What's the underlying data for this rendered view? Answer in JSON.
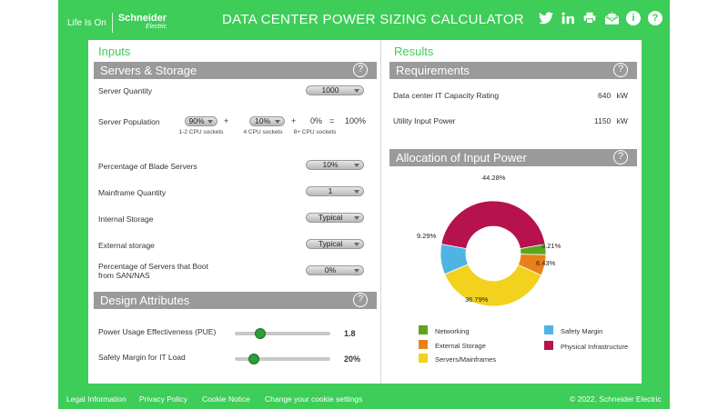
{
  "header": {
    "tagline": "Life Is On",
    "brand_line1": "Schneider",
    "brand_line2": "Electric",
    "title": "DATA CENTER POWER SIZING CALCULATOR",
    "icons": [
      "twitter-icon",
      "linkedin-icon",
      "print-icon",
      "email-icon",
      "info-icon",
      "help-icon"
    ]
  },
  "inputs": {
    "title": "Inputs",
    "servers_storage": {
      "title": "Servers & Storage",
      "server_quantity": {
        "label": "Server Quantity",
        "value": "1000"
      },
      "server_population": {
        "label": "Server Population",
        "v1": "90%",
        "s1": "1-2 CPU sockets",
        "plus1": "+",
        "v2": "10%",
        "s2": "4 CPU sockets",
        "plus2": "+",
        "v3": "0%",
        "s3": "8+ CPU sockets",
        "eq": "=",
        "total": "100%"
      },
      "blade": {
        "label": "Percentage of Blade Servers",
        "value": "10%"
      },
      "mainframe": {
        "label": "Mainframe Quantity",
        "value": "1"
      },
      "internal": {
        "label": "Internal Storage",
        "value": "Typical"
      },
      "external": {
        "label": "External storage",
        "value": "Typical"
      },
      "san": {
        "label1": "Percentage of Servers that Boot",
        "label2": "from SAN/NAS",
        "value": "0%"
      }
    },
    "design": {
      "title": "Design Attributes",
      "pue": {
        "label": "Power Usage Effectiveness (PUE)",
        "value": "1.8",
        "level": 0.27
      },
      "margin": {
        "label": "Safety Margin for IT Load",
        "value": "20%",
        "level": 0.2
      }
    }
  },
  "results": {
    "title": "Results",
    "requirements": {
      "title": "Requirements",
      "it_capacity": {
        "label": "Data center IT Capacity Rating",
        "value": "640",
        "unit": "kW"
      },
      "utility": {
        "label": "Utility Input Power",
        "value": "1150",
        "unit": "kW"
      }
    },
    "allocation": {
      "title": "Allocation of Input Power",
      "legend": {
        "networking": "Networking",
        "external_storage": "External Storage",
        "servers": "Servers/Mainframes",
        "safety": "Safety Margin",
        "physical": "Physical Infrastructure"
      },
      "labels": {
        "physical": "44.28%",
        "networking": "3.21%",
        "external": "6.43%",
        "servers": "36.79%",
        "safety": "9.29%"
      }
    }
  },
  "chart_data": {
    "type": "pie",
    "categories": [
      "Physical Infrastructure",
      "Networking",
      "External Storage",
      "Servers/Mainframes",
      "Safety Margin"
    ],
    "values": [
      44.28,
      3.21,
      6.43,
      36.79,
      9.29
    ],
    "colors": [
      "#b5124e",
      "#5aa61e",
      "#e8811a",
      "#f2d21d",
      "#4fb4e3"
    ],
    "title": "Allocation of Input Power"
  },
  "footer": {
    "legal": "Legal Information",
    "privacy": "Privacy Policy",
    "cookie": "Cookie Notice",
    "cookie_settings": "Change your cookie settings",
    "copyright": "© 2022, Schneider Electric"
  }
}
